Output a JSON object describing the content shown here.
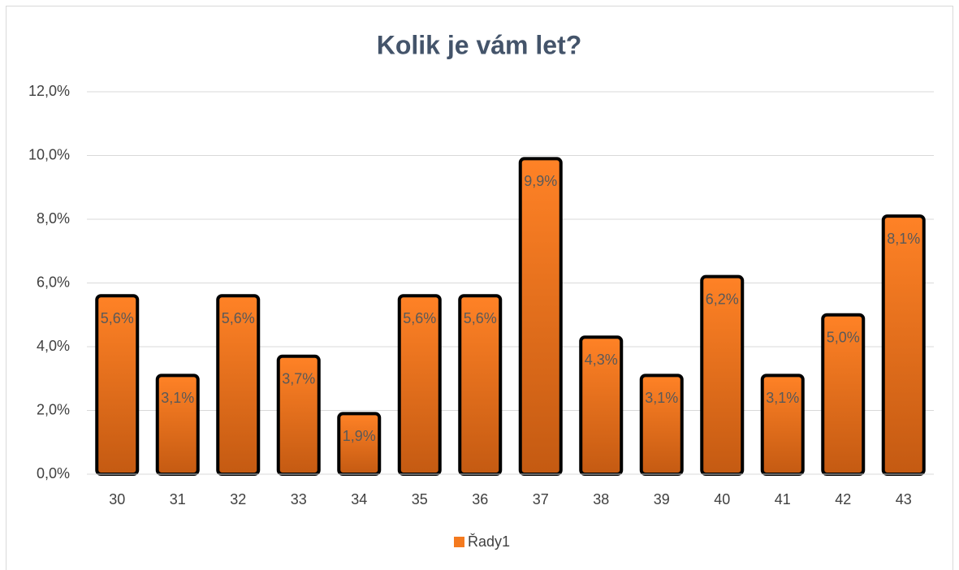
{
  "chart_data": {
    "type": "bar",
    "title": "Kolik je vám let?",
    "categories": [
      "30",
      "31",
      "32",
      "33",
      "34",
      "35",
      "36",
      "37",
      "38",
      "39",
      "40",
      "41",
      "42",
      "43"
    ],
    "values": [
      5.6,
      3.1,
      5.6,
      3.7,
      1.9,
      5.6,
      5.6,
      9.9,
      4.3,
      3.1,
      6.2,
      3.1,
      5.0,
      8.1
    ],
    "value_labels": [
      "5,6%",
      "3,1%",
      "5,6%",
      "3,7%",
      "1,9%",
      "5,6%",
      "5,6%",
      "9,9%",
      "4,3%",
      "3,1%",
      "6,2%",
      "3,1%",
      "5,0%",
      "8,1%"
    ],
    "series_name": "Řady1",
    "color": "#f47a1f",
    "ylim": [
      0,
      12
    ],
    "yticks": [
      {
        "value": 0,
        "label": "0,0%"
      },
      {
        "value": 2,
        "label": "2,0%"
      },
      {
        "value": 4,
        "label": "4,0%"
      },
      {
        "value": 6,
        "label": "6,0%"
      },
      {
        "value": 8,
        "label": "8,0%"
      },
      {
        "value": 10,
        "label": "10,0%"
      },
      {
        "value": 12,
        "label": "12,0%"
      }
    ],
    "grid": true,
    "legend": "bottom"
  }
}
